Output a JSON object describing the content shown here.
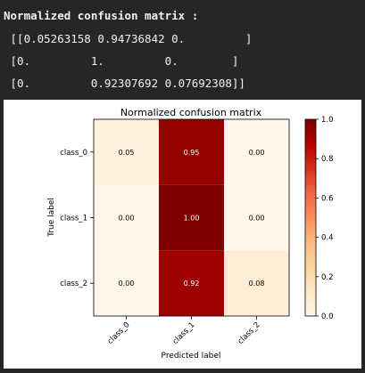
{
  "console": {
    "header": "Normalized confusion matrix :",
    "rows": [
      " [[0.05263158 0.94736842 0.         ]",
      " [0.         1.         0.        ]",
      " [0.         0.92307692 0.07692308]]"
    ]
  },
  "chart_data": {
    "type": "heatmap",
    "title": "Normalized confusion matrix",
    "xlabel": "Predicted label",
    "ylabel": "True label",
    "x_categories": [
      "class_0",
      "class_1",
      "class_2"
    ],
    "y_categories": [
      "class_0",
      "class_1",
      "class_2"
    ],
    "values": [
      [
        0.05263158,
        0.94736842,
        0.0
      ],
      [
        0.0,
        1.0,
        0.0
      ],
      [
        0.0,
        0.92307692,
        0.07692308
      ]
    ],
    "cell_labels": [
      [
        "0.05",
        "0.95",
        "0.00"
      ],
      [
        "0.00",
        "1.00",
        "0.00"
      ],
      [
        "0.00",
        "0.92",
        "0.08"
      ]
    ],
    "colormap": "OrRd-like (white to dark red)",
    "colorbar": {
      "range": [
        0.0,
        1.0
      ],
      "ticks": [
        "0.0",
        "0.2",
        "0.4",
        "0.6",
        "0.8",
        "1.0"
      ]
    },
    "colors": {
      "low": "#fff7ec",
      "high": "#7f0000"
    }
  }
}
